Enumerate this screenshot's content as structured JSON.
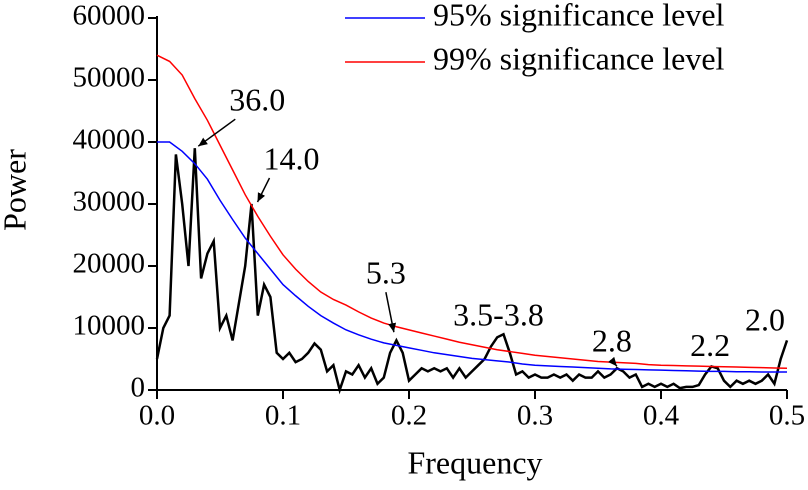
{
  "chart_data": {
    "type": "line",
    "x_label": "Frequency",
    "y_label": "Power",
    "xlim": [
      0,
      0.5
    ],
    "ylim": [
      0,
      60000
    ],
    "xticks": [
      {
        "value": 0,
        "label": "0.0"
      },
      0.1,
      0.2,
      0.3,
      0.4,
      0.5
    ],
    "yticks": [
      0,
      10000,
      20000,
      30000,
      40000,
      50000,
      60000
    ],
    "legend": "top-right",
    "series": [
      {
        "color": "#000000",
        "x": [
          0,
          0.005,
          0.01,
          0.015,
          0.02,
          0.025,
          0.03,
          0.035,
          0.04,
          0.045,
          0.05,
          0.055,
          0.06,
          0.065,
          0.07,
          0.075,
          0.08,
          0.085,
          0.09,
          0.095,
          0.1,
          0.105,
          0.11,
          0.115,
          0.12,
          0.125,
          0.13,
          0.135,
          0.14,
          0.145,
          0.15,
          0.155,
          0.16,
          0.165,
          0.17,
          0.175,
          0.18,
          0.185,
          0.19,
          0.195,
          0.2,
          0.205,
          0.21,
          0.215,
          0.22,
          0.225,
          0.23,
          0.235,
          0.24,
          0.245,
          0.25,
          0.255,
          0.26,
          0.265,
          0.27,
          0.275,
          0.28,
          0.285,
          0.29,
          0.295,
          0.3,
          0.305,
          0.31,
          0.315,
          0.32,
          0.325,
          0.33,
          0.335,
          0.34,
          0.345,
          0.35,
          0.355,
          0.36,
          0.365,
          0.37,
          0.375,
          0.38,
          0.385,
          0.39,
          0.395,
          0.4,
          0.405,
          0.41,
          0.415,
          0.42,
          0.425,
          0.43,
          0.435,
          0.44,
          0.445,
          0.45,
          0.455,
          0.46,
          0.465,
          0.47,
          0.475,
          0.48,
          0.485,
          0.49,
          0.495,
          0.5
        ],
        "values": [
          5000,
          10000,
          12000,
          38000,
          30000,
          20000,
          39000,
          18000,
          22000,
          24000,
          10000,
          12000,
          8000,
          14000,
          20000,
          30000,
          12000,
          17000,
          15000,
          6000,
          5000,
          6000,
          4500,
          5000,
          6000,
          7500,
          6500,
          3000,
          4000,
          0,
          3000,
          2500,
          4000,
          2000,
          3500,
          1000,
          2000,
          6000,
          8000,
          6000,
          1500,
          2500,
          3500,
          3000,
          3500,
          3000,
          3500,
          2000,
          3500,
          2000,
          3000,
          4000,
          5000,
          7000,
          8500,
          9000,
          6000,
          2500,
          3000,
          2000,
          2500,
          2000,
          2000,
          2500,
          2000,
          2500,
          1500,
          2500,
          2000,
          2000,
          3000,
          2000,
          2500,
          3500,
          3000,
          2000,
          2500,
          500,
          1000,
          500,
          1000,
          500,
          1000,
          300,
          500,
          500,
          800,
          2500,
          3800,
          3500,
          1500,
          500,
          1500,
          1000,
          1500,
          1000,
          1500,
          2500,
          1000,
          5000,
          8000
        ]
      },
      {
        "name": "95% significance level",
        "color": "#0000ff",
        "x": [
          0,
          0.01,
          0.02,
          0.03,
          0.04,
          0.05,
          0.06,
          0.07,
          0.08,
          0.09,
          0.1,
          0.11,
          0.12,
          0.13,
          0.14,
          0.15,
          0.16,
          0.17,
          0.18,
          0.19,
          0.2,
          0.21,
          0.22,
          0.23,
          0.24,
          0.25,
          0.26,
          0.27,
          0.28,
          0.29,
          0.3,
          0.31,
          0.32,
          0.33,
          0.34,
          0.35,
          0.36,
          0.37,
          0.38,
          0.39,
          0.4,
          0.41,
          0.42,
          0.43,
          0.44,
          0.45,
          0.46,
          0.47,
          0.48,
          0.49,
          0.5
        ],
        "values": [
          40000,
          40000,
          38500,
          36500,
          34000,
          30600,
          27500,
          24500,
          22000,
          19500,
          17000,
          15200,
          13500,
          12000,
          10800,
          9700,
          8900,
          8200,
          7600,
          7200,
          6800,
          6400,
          6000,
          5700,
          5400,
          5100,
          4900,
          4700,
          4500,
          4200,
          4000,
          3900,
          3800,
          3700,
          3600,
          3500,
          3400,
          3350,
          3300,
          3250,
          3200,
          3150,
          3100,
          3050,
          3000,
          3000,
          2950,
          2950,
          2900,
          2900,
          2900
        ]
      },
      {
        "name": "99% significance level",
        "color": "#ff0000",
        "x": [
          0,
          0.01,
          0.02,
          0.03,
          0.04,
          0.05,
          0.06,
          0.07,
          0.08,
          0.09,
          0.1,
          0.11,
          0.12,
          0.13,
          0.14,
          0.15,
          0.16,
          0.17,
          0.18,
          0.19,
          0.2,
          0.21,
          0.22,
          0.23,
          0.24,
          0.25,
          0.26,
          0.27,
          0.28,
          0.29,
          0.3,
          0.31,
          0.32,
          0.33,
          0.34,
          0.35,
          0.36,
          0.37,
          0.38,
          0.39,
          0.4,
          0.41,
          0.42,
          0.43,
          0.44,
          0.45,
          0.46,
          0.47,
          0.48,
          0.49,
          0.5
        ],
        "values": [
          54000,
          53000,
          50800,
          47000,
          43500,
          39500,
          35500,
          31500,
          28000,
          24800,
          21800,
          19500,
          17500,
          15800,
          14600,
          13700,
          12600,
          11600,
          10800,
          10200,
          9700,
          9200,
          8700,
          8200,
          7700,
          7300,
          6900,
          6500,
          6200,
          5900,
          5600,
          5400,
          5200,
          5000,
          4800,
          4600,
          4500,
          4400,
          4300,
          4100,
          4000,
          3950,
          3900,
          3850,
          3800,
          3750,
          3700,
          3650,
          3600,
          3550,
          3500
        ]
      }
    ],
    "annotations": [
      {
        "text": "36.0",
        "x": 0.028,
        "y": 39000
      },
      {
        "text": "14.0",
        "x": 0.075,
        "y": 30000
      },
      {
        "text": "5.3",
        "x": 0.188,
        "y": 9000
      },
      {
        "text": "3.5-3.8",
        "x": 0.275,
        "y": 9000
      },
      {
        "text": "2.8",
        "x": 0.365,
        "y": 3500
      },
      {
        "text": "2.2",
        "x": 0.443,
        "y": 3800
      },
      {
        "text": "2.0",
        "x": 0.5,
        "y": 8000
      }
    ]
  }
}
